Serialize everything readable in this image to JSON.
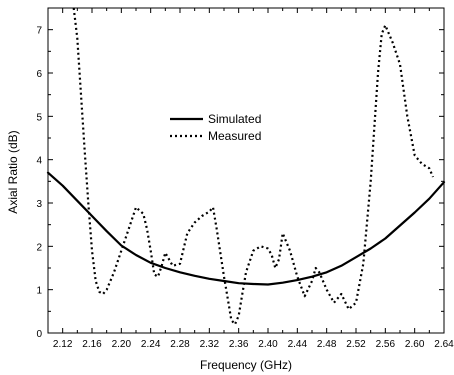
{
  "chart_data": {
    "type": "line",
    "title": "",
    "xlabel": "Frequency (GHz)",
    "ylabel": "Axial Ratio (dB)",
    "xlim": [
      2.1,
      2.64
    ],
    "ylim": [
      0,
      7.5
    ],
    "x_ticks": [
      2.12,
      2.16,
      2.2,
      2.24,
      2.28,
      2.32,
      2.36,
      2.4,
      2.44,
      2.48,
      2.52,
      2.56,
      2.6,
      2.64
    ],
    "x_tick_labels": [
      "2.12",
      "2.16",
      "2.20",
      "2.24",
      "2.28",
      "2.32",
      "2.36",
      "2.40",
      "2.44",
      "2.48",
      "2.52",
      "2.56",
      "2.60",
      "2.64"
    ],
    "y_ticks": [
      0,
      1,
      2,
      3,
      4,
      5,
      6,
      7
    ],
    "y_tick_labels": [
      "0",
      "1",
      "2",
      "3",
      "4",
      "5",
      "6",
      "7"
    ],
    "grid": false,
    "legend_position": "center",
    "series": [
      {
        "name": "Simulated",
        "style": "solid",
        "color": "#000000",
        "x": [
          2.1,
          2.12,
          2.14,
          2.16,
          2.18,
          2.2,
          2.22,
          2.24,
          2.26,
          2.28,
          2.3,
          2.32,
          2.34,
          2.36,
          2.38,
          2.4,
          2.42,
          2.44,
          2.46,
          2.48,
          2.5,
          2.52,
          2.54,
          2.56,
          2.58,
          2.6,
          2.62,
          2.64
        ],
        "y": [
          3.7,
          3.4,
          3.05,
          2.7,
          2.35,
          2.02,
          1.8,
          1.62,
          1.5,
          1.4,
          1.32,
          1.25,
          1.2,
          1.15,
          1.13,
          1.12,
          1.16,
          1.22,
          1.3,
          1.4,
          1.55,
          1.75,
          1.95,
          2.18,
          2.48,
          2.78,
          3.1,
          3.48
        ]
      },
      {
        "name": "Measured",
        "style": "dotted",
        "color": "#000000",
        "x": [
          2.135,
          2.14,
          2.145,
          2.15,
          2.155,
          2.16,
          2.165,
          2.17,
          2.175,
          2.18,
          2.19,
          2.2,
          2.21,
          2.22,
          2.23,
          2.235,
          2.24,
          2.245,
          2.25,
          2.255,
          2.26,
          2.27,
          2.28,
          2.29,
          2.3,
          2.31,
          2.32,
          2.325,
          2.33,
          2.34,
          2.345,
          2.35,
          2.355,
          2.36,
          2.365,
          2.37,
          2.38,
          2.39,
          2.4,
          2.405,
          2.41,
          2.415,
          2.42,
          2.425,
          2.43,
          2.44,
          2.45,
          2.46,
          2.465,
          2.47,
          2.48,
          2.49,
          2.5,
          2.51,
          2.52,
          2.53,
          2.54,
          2.55,
          2.555,
          2.56,
          2.57,
          2.58,
          2.59,
          2.6,
          2.61,
          2.62,
          2.625
        ],
        "y": [
          7.5,
          6.8,
          5.5,
          4.2,
          3.0,
          1.9,
          1.2,
          0.95,
          0.9,
          1.0,
          1.4,
          1.9,
          2.4,
          2.9,
          2.75,
          2.4,
          1.9,
          1.35,
          1.3,
          1.55,
          1.85,
          1.55,
          1.6,
          2.3,
          2.55,
          2.7,
          2.8,
          2.9,
          2.4,
          1.3,
          0.8,
          0.3,
          0.2,
          0.4,
          0.9,
          1.4,
          1.9,
          2.0,
          1.95,
          1.8,
          1.5,
          1.7,
          2.3,
          2.1,
          1.9,
          1.3,
          0.85,
          1.2,
          1.5,
          1.4,
          1.0,
          0.7,
          0.9,
          0.55,
          0.7,
          1.6,
          3.5,
          6.0,
          6.9,
          7.1,
          6.7,
          6.2,
          5.0,
          4.1,
          3.9,
          3.8,
          3.6
        ]
      }
    ]
  }
}
